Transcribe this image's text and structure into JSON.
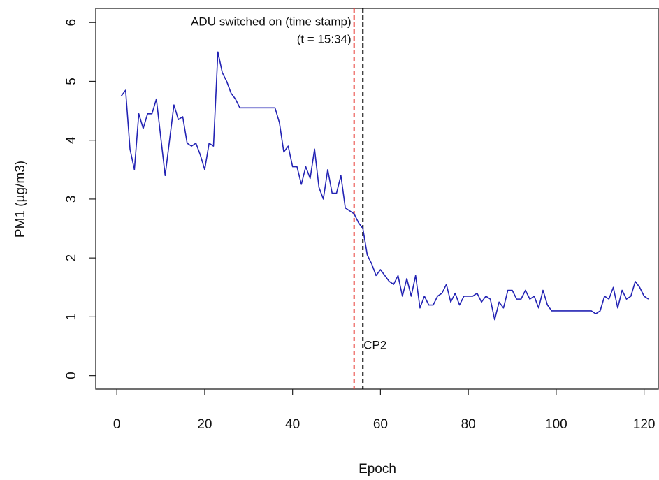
{
  "chart_data": {
    "type": "line",
    "xlabel": "Epoch",
    "ylabel": "PM1 (µg/m3)",
    "x": [
      1,
      2,
      3,
      4,
      5,
      6,
      7,
      8,
      9,
      10,
      11,
      12,
      13,
      14,
      15,
      16,
      17,
      18,
      19,
      20,
      21,
      22,
      23,
      24,
      25,
      26,
      27,
      28,
      29,
      30,
      31,
      32,
      33,
      34,
      35,
      36,
      37,
      38,
      39,
      40,
      41,
      42,
      43,
      44,
      45,
      46,
      47,
      48,
      49,
      50,
      51,
      52,
      53,
      54,
      55,
      56,
      57,
      58,
      59,
      60,
      61,
      62,
      63,
      64,
      65,
      66,
      67,
      68,
      69,
      70,
      71,
      72,
      73,
      74,
      75,
      76,
      77,
      78,
      79,
      80,
      81,
      82,
      83,
      84,
      85,
      86,
      87,
      88,
      89,
      90,
      91,
      92,
      93,
      94,
      95,
      96,
      97,
      98,
      99,
      100,
      101,
      102,
      103,
      104,
      105,
      106,
      107,
      108,
      109,
      110,
      111,
      112,
      113,
      114,
      115,
      116,
      117,
      118,
      119,
      120,
      121
    ],
    "values": [
      4.75,
      4.85,
      3.85,
      3.5,
      4.45,
      4.2,
      4.45,
      4.45,
      4.7,
      4.05,
      3.4,
      4.0,
      4.6,
      4.35,
      4.4,
      3.95,
      3.9,
      3.95,
      3.75,
      3.5,
      3.95,
      3.9,
      5.5,
      5.15,
      5.0,
      4.8,
      4.7,
      4.55,
      4.55,
      4.55,
      4.55,
      4.55,
      4.55,
      4.55,
      4.55,
      4.55,
      4.3,
      3.8,
      3.9,
      3.55,
      3.55,
      3.25,
      3.55,
      3.35,
      3.85,
      3.2,
      3.0,
      3.5,
      3.1,
      3.1,
      3.4,
      2.85,
      2.8,
      2.75,
      2.6,
      2.5,
      2.05,
      1.9,
      1.7,
      1.8,
      1.7,
      1.6,
      1.55,
      1.7,
      1.35,
      1.65,
      1.35,
      1.7,
      1.15,
      1.35,
      1.2,
      1.2,
      1.35,
      1.4,
      1.55,
      1.25,
      1.4,
      1.2,
      1.35,
      1.35,
      1.35,
      1.4,
      1.25,
      1.35,
      1.3,
      0.95,
      1.25,
      1.15,
      1.45,
      1.45,
      1.3,
      1.3,
      1.45,
      1.3,
      1.35,
      1.15,
      1.45,
      1.2,
      1.1,
      1.1,
      1.1,
      1.1,
      1.1,
      1.1,
      1.1,
      1.1,
      1.1,
      1.1,
      1.05,
      1.1,
      1.35,
      1.3,
      1.5,
      1.15,
      1.45,
      1.3,
      1.35,
      1.6,
      1.5,
      1.35,
      1.3
    ],
    "color": "#2323b4",
    "xlim": [
      -4.8,
      123.4
    ],
    "ylim": [
      -0.23,
      6.24
    ],
    "xticks": [
      0,
      20,
      40,
      60,
      80,
      100,
      120
    ],
    "yticks": [
      0,
      1,
      2,
      3,
      4,
      5,
      6
    ],
    "grid": false,
    "vlines": [
      {
        "x": 54,
        "color": "#e8413c"
      },
      {
        "x": 56,
        "color": "#000000"
      }
    ],
    "annotations": [
      "ADU switched on (time stamp)",
      "(t = 15:34)",
      "CP2"
    ]
  }
}
